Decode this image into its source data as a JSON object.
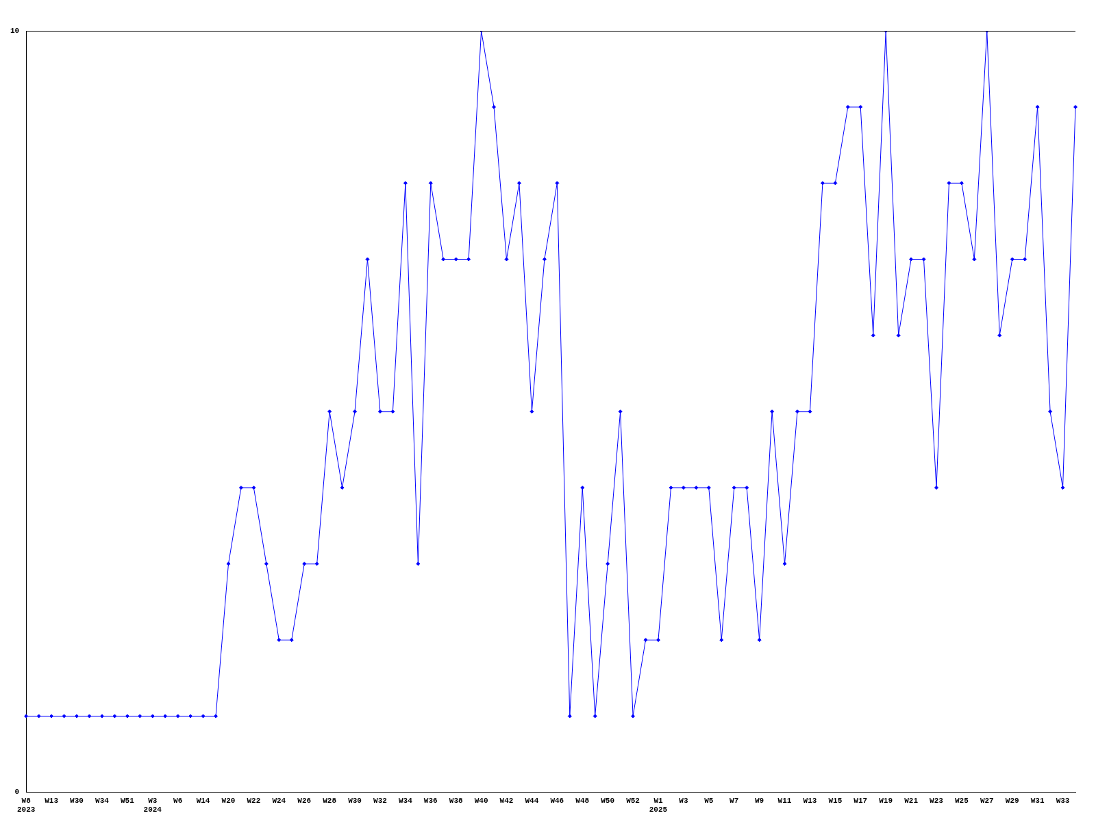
{
  "chart_data": {
    "type": "line",
    "categories": [
      "W8\n2023",
      null,
      "W13",
      null,
      "W30",
      null,
      "W34",
      null,
      "W51",
      null,
      "W3\n2024",
      null,
      "W6",
      null,
      "W14",
      null,
      "W20",
      null,
      "W22",
      null,
      "W24",
      null,
      "W26",
      null,
      "W28",
      null,
      "W30",
      null,
      "W32",
      null,
      "W34",
      null,
      "W36",
      null,
      "W38",
      null,
      "W40",
      null,
      "W42",
      null,
      "W44",
      null,
      "W46",
      null,
      "W48",
      null,
      "W50",
      null,
      "W52",
      null,
      "W1\n2025",
      null,
      "W3",
      null,
      "W5",
      null,
      "W7",
      null,
      "W9",
      null,
      "W11",
      null,
      "W13",
      null,
      "W15",
      null,
      "W17",
      null,
      "W19",
      null,
      "W21",
      null,
      "W23",
      null,
      "W25",
      null,
      "W27",
      null,
      "W29",
      null,
      "W31",
      null,
      "W33",
      null
    ],
    "series": [
      {
        "color": "#0000ff",
        "values": [
          1,
          1,
          1,
          1,
          1,
          1,
          1,
          1,
          1,
          1,
          1,
          1,
          1,
          1,
          1,
          1,
          3,
          4,
          4,
          3,
          2,
          2,
          3,
          3,
          5,
          4,
          5,
          7,
          5,
          5,
          8,
          3,
          8,
          7,
          7,
          7,
          10,
          9,
          7,
          8,
          5,
          7,
          8,
          1,
          4,
          1,
          3,
          5,
          1,
          2,
          2,
          4,
          4,
          4,
          4,
          2,
          4,
          4,
          2,
          5,
          3,
          5,
          5,
          8,
          8,
          9,
          9,
          6,
          10,
          6,
          7,
          7,
          4,
          8,
          8,
          7,
          10,
          6,
          7,
          7,
          9,
          5,
          4,
          9
        ]
      }
    ],
    "ylim": [
      0,
      10
    ],
    "yticks": [
      0,
      10
    ],
    "marker": "diamond",
    "legend": false,
    "grid": false
  }
}
